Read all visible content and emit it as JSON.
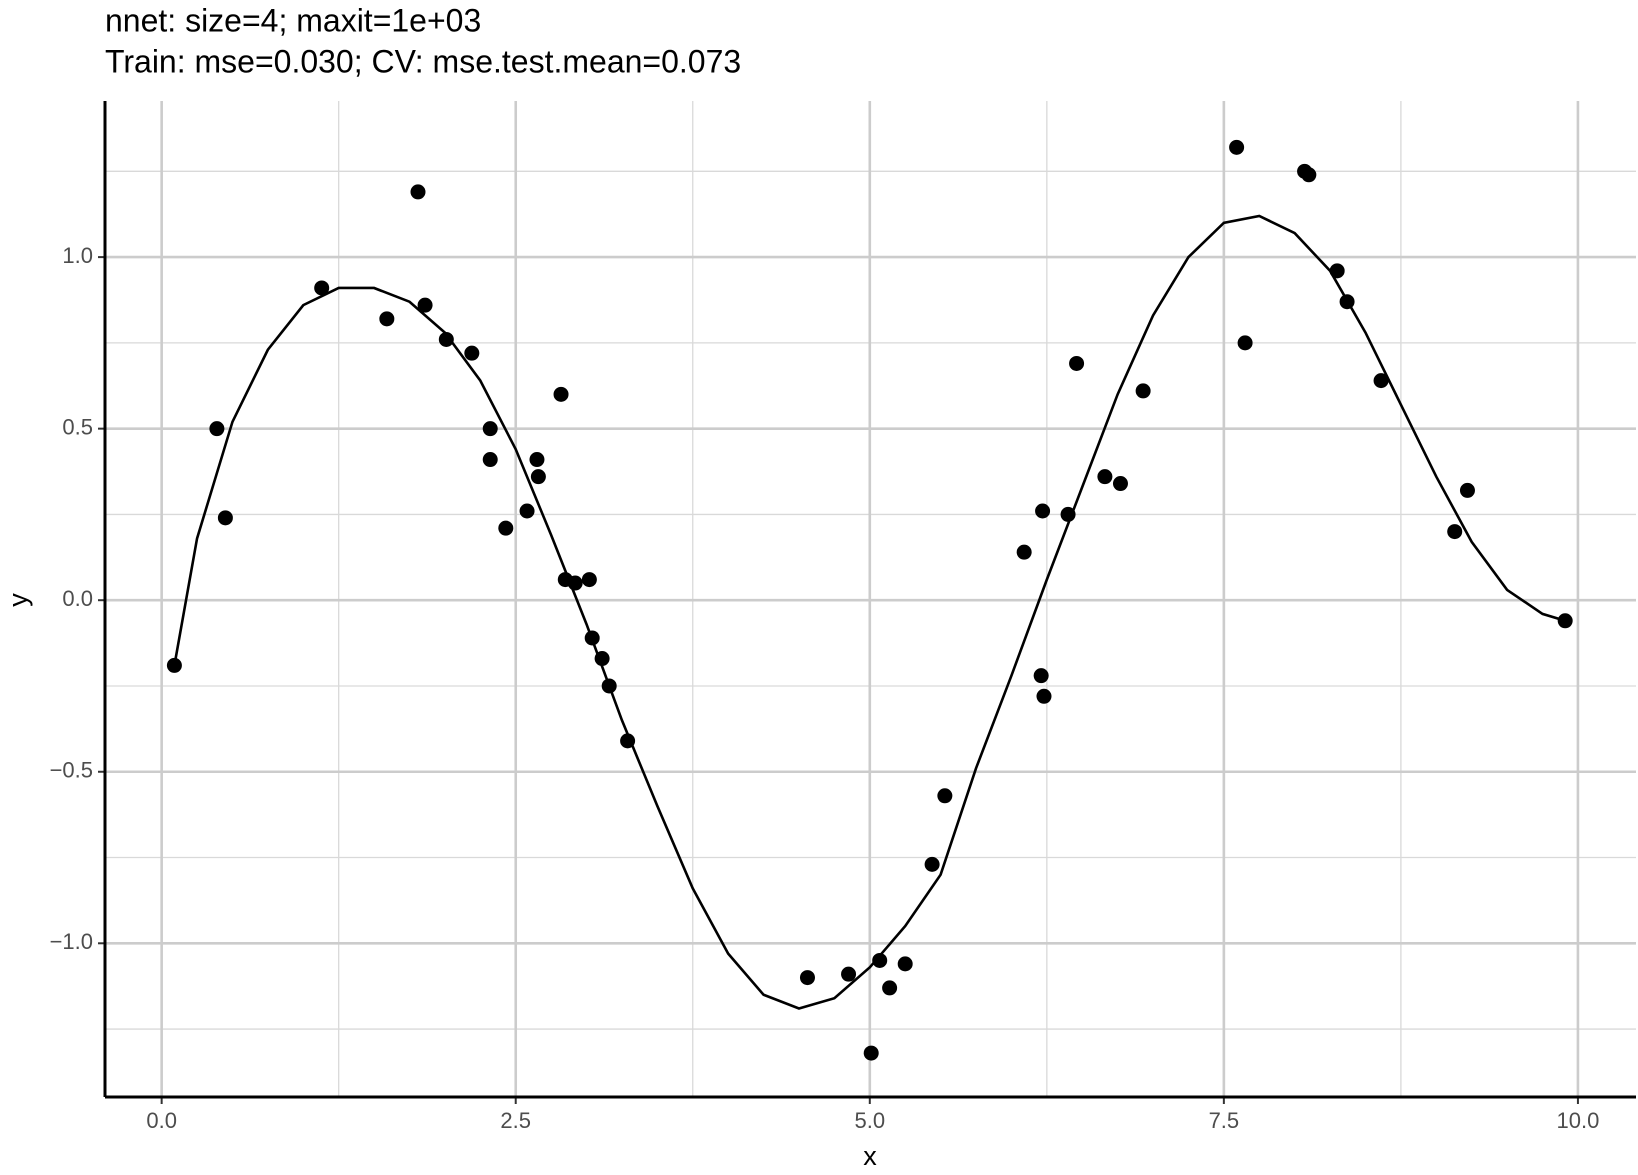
{
  "chart_data": {
    "type": "scatter",
    "title": "nnet: size=4; maxit=1e+03",
    "subtitle": "Train: mse=0.030; CV: mse.test.mean=0.073",
    "xlabel": "x",
    "ylabel": "y",
    "xlim": [
      -0.4,
      10.41
    ],
    "ylim": [
      -1.448,
      1.455
    ],
    "xticks": [
      {
        "value": 0,
        "label": "0.0"
      },
      {
        "value": 2.5,
        "label": "2.5"
      },
      {
        "value": 5,
        "label": "5.0"
      },
      {
        "value": 7.5,
        "label": "7.5"
      },
      {
        "value": 10,
        "label": "10.0"
      }
    ],
    "yticks": [
      {
        "value": -1,
        "label": "−1.0"
      },
      {
        "value": -0.5,
        "label": "−0.5"
      },
      {
        "value": 0,
        "label": "0.0"
      },
      {
        "value": 0.5,
        "label": "0.5"
      },
      {
        "value": 1,
        "label": "1.0"
      }
    ],
    "xminor": [
      1.25,
      3.75,
      6.25,
      8.75
    ],
    "yminor": [
      -1.25,
      -0.75,
      -0.25,
      0.25,
      0.75,
      1.25
    ],
    "grid": true,
    "points": {
      "color": "#000000",
      "x": [
        0.09,
        0.39,
        0.45,
        1.13,
        1.59,
        1.81,
        1.86,
        2.01,
        2.19,
        2.32,
        2.32,
        2.43,
        2.58,
        2.65,
        2.66,
        2.82,
        2.85,
        2.92,
        3.02,
        3.04,
        3.11,
        3.16,
        3.29,
        4.56,
        4.85,
        5.01,
        5.07,
        5.14,
        5.25,
        5.44,
        5.53,
        6.09,
        6.21,
        6.22,
        6.23,
        6.4,
        6.46,
        6.66,
        6.77,
        6.93,
        7.59,
        7.65,
        8.07,
        8.1,
        8.3,
        8.37,
        8.61,
        9.13,
        9.22,
        9.91
      ],
      "y": [
        -0.19,
        0.5,
        0.24,
        0.91,
        0.82,
        1.19,
        0.86,
        0.76,
        0.72,
        0.5,
        0.41,
        0.21,
        0.26,
        0.41,
        0.36,
        0.6,
        0.06,
        0.05,
        0.06,
        -0.11,
        -0.17,
        -0.25,
        -0.41,
        -1.1,
        -1.09,
        -1.32,
        -1.05,
        -1.13,
        -1.06,
        -0.77,
        -0.57,
        0.14,
        -0.22,
        0.26,
        -0.28,
        0.25,
        0.69,
        0.36,
        0.34,
        0.61,
        1.32,
        0.75,
        1.25,
        1.24,
        0.96,
        0.87,
        0.64,
        0.2,
        0.32,
        -0.06
      ]
    },
    "line": {
      "color": "#000000",
      "x": [
        0.09,
        0.25,
        0.5,
        0.75,
        1.0,
        1.25,
        1.5,
        1.75,
        2.0,
        2.25,
        2.5,
        2.75,
        3.0,
        3.25,
        3.5,
        3.75,
        4.0,
        4.25,
        4.5,
        4.75,
        5.0,
        5.25,
        5.5,
        5.75,
        6.0,
        6.25,
        6.5,
        6.75,
        7.0,
        7.25,
        7.5,
        7.75,
        8.0,
        8.25,
        8.5,
        8.75,
        9.0,
        9.25,
        9.5,
        9.75,
        9.91
      ],
      "y": [
        -0.19,
        0.18,
        0.52,
        0.73,
        0.86,
        0.91,
        0.91,
        0.87,
        0.78,
        0.64,
        0.44,
        0.19,
        -0.07,
        -0.35,
        -0.6,
        -0.84,
        -1.03,
        -1.15,
        -1.19,
        -1.16,
        -1.07,
        -0.95,
        -0.8,
        -0.49,
        -0.22,
        0.06,
        0.33,
        0.6,
        0.83,
        1.0,
        1.1,
        1.12,
        1.07,
        0.96,
        0.78,
        0.57,
        0.36,
        0.17,
        0.03,
        -0.04,
        -0.06
      ]
    }
  }
}
